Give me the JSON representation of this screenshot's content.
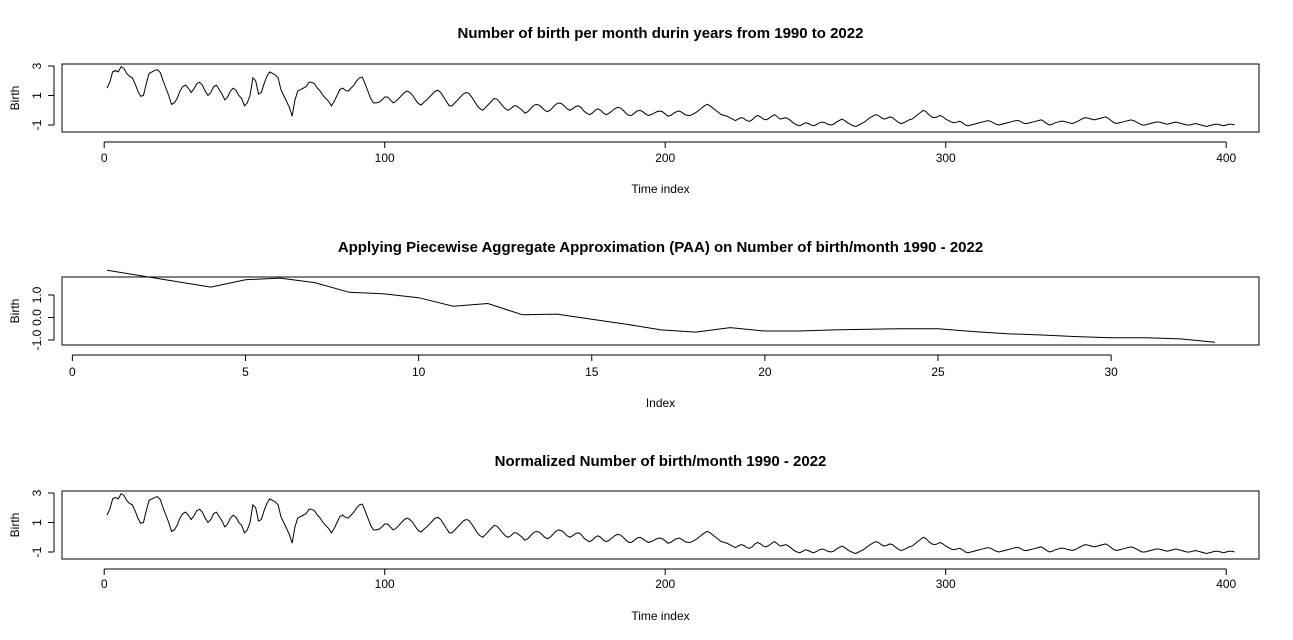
{
  "chart_data": [
    {
      "type": "line",
      "title": "Number of birth per month durin years from 1990 to 2022",
      "xlabel": "Time index",
      "ylabel": "Birth",
      "xlim": [
        1,
        396
      ],
      "ylim": [
        -1.3,
        3.0
      ],
      "xticks": [
        0,
        100,
        200,
        300,
        400
      ],
      "yticks": [
        -1,
        1,
        3
      ],
      "x_start": 1,
      "values": [
        1.5,
        1.9,
        2.6,
        2.7,
        2.6,
        2.95,
        2.85,
        2.5,
        2.3,
        2.2,
        1.8,
        1.3,
        0.95,
        1.0,
        1.8,
        2.5,
        2.6,
        2.7,
        2.75,
        2.55,
        2.0,
        1.5,
        1.0,
        0.4,
        0.5,
        0.8,
        1.3,
        1.6,
        1.7,
        1.5,
        1.2,
        1.45,
        1.8,
        1.9,
        1.7,
        1.3,
        1.0,
        1.2,
        1.6,
        1.7,
        1.4,
        1.1,
        0.7,
        0.9,
        1.3,
        1.5,
        1.35,
        1.0,
        0.8,
        0.3,
        0.5,
        1.0,
        2.2,
        2.0,
        1.1,
        1.2,
        1.8,
        2.3,
        2.6,
        2.5,
        2.4,
        2.2,
        1.4,
        1.0,
        0.6,
        0.2,
        -0.4,
        0.7,
        1.3,
        1.4,
        1.5,
        1.6,
        1.9,
        1.9,
        1.8,
        1.5,
        1.3,
        1.0,
        0.8,
        0.6,
        0.3,
        0.6,
        1.0,
        1.4,
        1.5,
        1.35,
        1.3,
        1.5,
        1.7,
        2.0,
        2.2,
        2.25,
        1.8,
        1.3,
        0.8,
        0.5,
        0.5,
        0.55,
        0.7,
        0.9,
        0.9,
        0.7,
        0.5,
        0.6,
        0.8,
        1.0,
        1.2,
        1.3,
        1.2,
        1.0,
        0.7,
        0.45,
        0.35,
        0.55,
        0.7,
        0.9,
        1.1,
        1.3,
        1.35,
        1.2,
        0.9,
        0.6,
        0.3,
        0.3,
        0.5,
        0.7,
        0.9,
        1.1,
        1.2,
        1.15,
        0.9,
        0.6,
        0.3,
        0.1,
        0.0,
        0.2,
        0.4,
        0.6,
        0.8,
        0.75,
        0.55,
        0.3,
        0.1,
        0.0,
        0.1,
        0.3,
        0.3,
        0.15,
        0.0,
        -0.2,
        -0.1,
        0.1,
        0.3,
        0.4,
        0.35,
        0.2,
        0.0,
        -0.1,
        0.0,
        0.2,
        0.4,
        0.5,
        0.45,
        0.3,
        0.1,
        0.0,
        0.1,
        0.25,
        0.3,
        0.2,
        -0.05,
        -0.2,
        -0.3,
        -0.2,
        0.0,
        0.1,
        0.0,
        -0.2,
        -0.3,
        -0.2,
        -0.05,
        0.1,
        0.2,
        0.15,
        0.0,
        -0.2,
        -0.35,
        -0.35,
        -0.2,
        -0.05,
        0.0,
        -0.1,
        -0.25,
        -0.35,
        -0.3,
        -0.2,
        -0.1,
        -0.05,
        -0.1,
        -0.25,
        -0.4,
        -0.35,
        -0.2,
        -0.1,
        -0.05,
        -0.15,
        -0.3,
        -0.35,
        -0.35,
        -0.25,
        -0.15,
        0.0,
        0.15,
        0.3,
        0.4,
        0.3,
        0.15,
        0.0,
        -0.15,
        -0.3,
        -0.35,
        -0.4,
        -0.5,
        -0.6,
        -0.7,
        -0.6,
        -0.5,
        -0.55,
        -0.7,
        -0.75,
        -0.65,
        -0.45,
        -0.35,
        -0.45,
        -0.6,
        -0.65,
        -0.55,
        -0.4,
        -0.3,
        -0.45,
        -0.6,
        -0.55,
        -0.5,
        -0.6,
        -0.75,
        -0.9,
        -1.0,
        -1.05,
        -0.95,
        -0.85,
        -0.9,
        -1.0,
        -1.05,
        -0.95,
        -0.85,
        -0.8,
        -0.85,
        -0.95,
        -1.0,
        -0.95,
        -0.8,
        -0.7,
        -0.6,
        -0.7,
        -0.85,
        -0.95,
        -1.05,
        -1.1,
        -1.0,
        -0.9,
        -0.8,
        -0.65,
        -0.5,
        -0.4,
        -0.3,
        -0.35,
        -0.5,
        -0.6,
        -0.55,
        -0.45,
        -0.5,
        -0.65,
        -0.8,
        -0.9,
        -0.85,
        -0.75,
        -0.65,
        -0.6,
        -0.45,
        -0.3,
        -0.15,
        0.0,
        -0.1,
        -0.3,
        -0.45,
        -0.5,
        -0.45,
        -0.35,
        -0.45,
        -0.6,
        -0.7,
        -0.8,
        -0.85,
        -0.8,
        -0.75,
        -0.85,
        -1.0,
        -1.05,
        -1.0,
        -0.95,
        -0.9,
        -0.85,
        -0.8,
        -0.75,
        -0.7,
        -0.75,
        -0.85,
        -0.95,
        -1.0,
        -0.95,
        -0.9,
        -0.85,
        -0.8,
        -0.75,
        -0.7,
        -0.7,
        -0.8,
        -0.9,
        -0.9,
        -0.85,
        -0.8,
        -0.75,
        -0.7,
        -0.65,
        -0.75,
        -0.9,
        -1.0,
        -0.95,
        -0.85,
        -0.8,
        -0.75,
        -0.75,
        -0.8,
        -0.85,
        -0.9,
        -0.85,
        -0.75,
        -0.65,
        -0.55,
        -0.5,
        -0.55,
        -0.6,
        -0.65,
        -0.6,
        -0.55,
        -0.5,
        -0.45,
        -0.55,
        -0.7,
        -0.85,
        -0.9,
        -0.85,
        -0.8,
        -0.75,
        -0.7,
        -0.65,
        -0.7,
        -0.8,
        -0.9,
        -1.0,
        -1.0,
        -0.95,
        -0.9,
        -0.85,
        -0.8,
        -0.8,
        -0.85,
        -0.9,
        -0.95,
        -0.9,
        -0.85,
        -0.8,
        -0.85,
        -0.9,
        -0.95,
        -1.0,
        -1.0,
        -0.95,
        -0.9,
        -0.95,
        -1.0,
        -1.05,
        -1.1,
        -1.05,
        -1.0,
        -0.95,
        -0.95,
        -1.0,
        -1.05,
        -1.0,
        -0.95,
        -0.95,
        -1.0
      ]
    },
    {
      "type": "line",
      "title": "Applying Piecewise Aggregate Approximation (PAA) on Number of birth/month 1990 - 2022",
      "xlabel": "Index",
      "ylabel": "Birth",
      "xlim": [
        1,
        33
      ],
      "ylim": [
        -1.1,
        2.1
      ],
      "xticks": [
        0,
        5,
        10,
        15,
        20,
        25,
        30
      ],
      "yticks": [
        -1.0,
        0.0,
        1.0
      ],
      "x_start": 1,
      "values": [
        2.1,
        1.85,
        1.6,
        1.35,
        1.68,
        1.75,
        1.55,
        1.12,
        1.05,
        0.88,
        0.5,
        0.62,
        0.12,
        0.15,
        -0.08,
        -0.3,
        -0.55,
        -0.65,
        -0.45,
        -0.6,
        -0.6,
        -0.55,
        -0.52,
        -0.5,
        -0.5,
        -0.62,
        -0.72,
        -0.78,
        -0.85,
        -0.9,
        -0.9,
        -0.95,
        -1.1
      ]
    },
    {
      "type": "line",
      "title": "Normalized Number of birth/month 1990 - 2022",
      "xlabel": "Time index",
      "ylabel": "Birth",
      "xlim": [
        1,
        396
      ],
      "ylim": [
        -1.3,
        3.0
      ],
      "xticks": [
        0,
        100,
        200,
        300,
        400
      ],
      "yticks": [
        -1,
        1,
        3
      ],
      "same_values_as": 0
    }
  ]
}
